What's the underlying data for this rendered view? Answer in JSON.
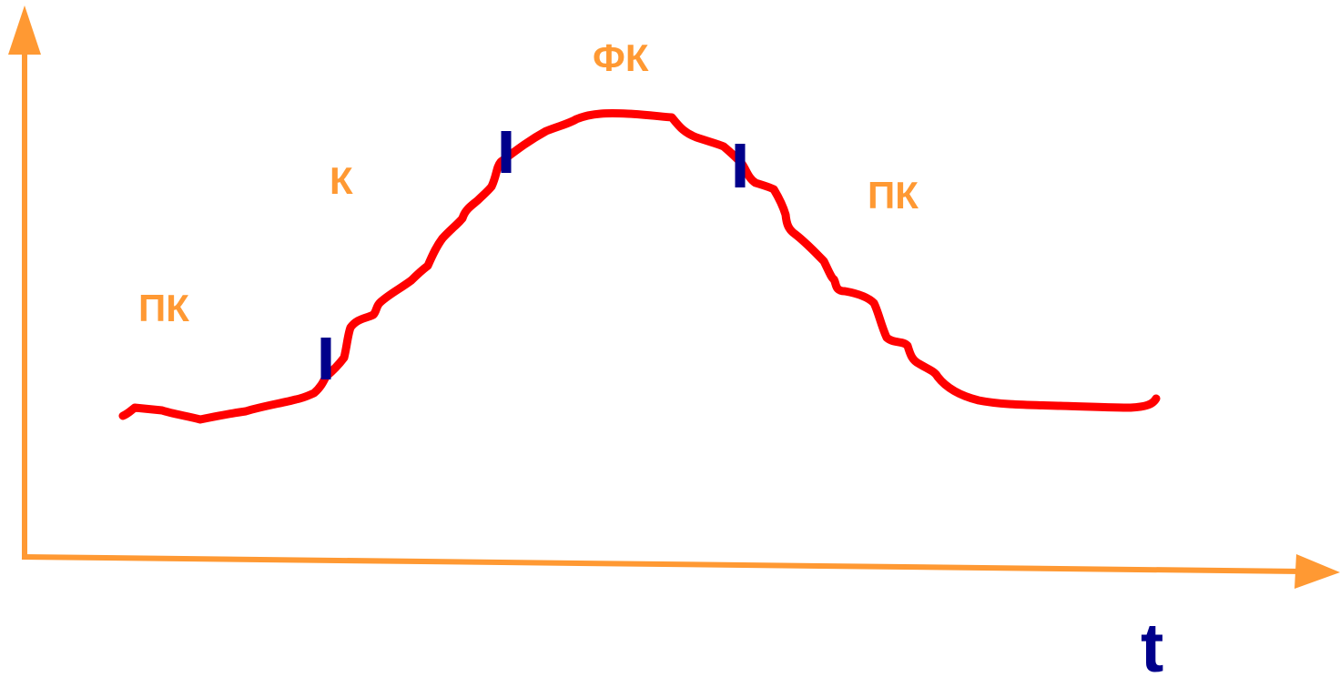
{
  "colors": {
    "axis": "#FF9933",
    "curve": "#FF0000",
    "marker": "#00008B",
    "phase_label": "#FF9933",
    "axis_label": "#00008B"
  },
  "axes": {
    "x_label": "t"
  },
  "phases": [
    {
      "id": "pk-left",
      "label": "ПК"
    },
    {
      "id": "k",
      "label": "К"
    },
    {
      "id": "fk",
      "label": "ФК"
    },
    {
      "id": "pk-right",
      "label": "ПК"
    }
  ],
  "boundary_markers": 3
}
